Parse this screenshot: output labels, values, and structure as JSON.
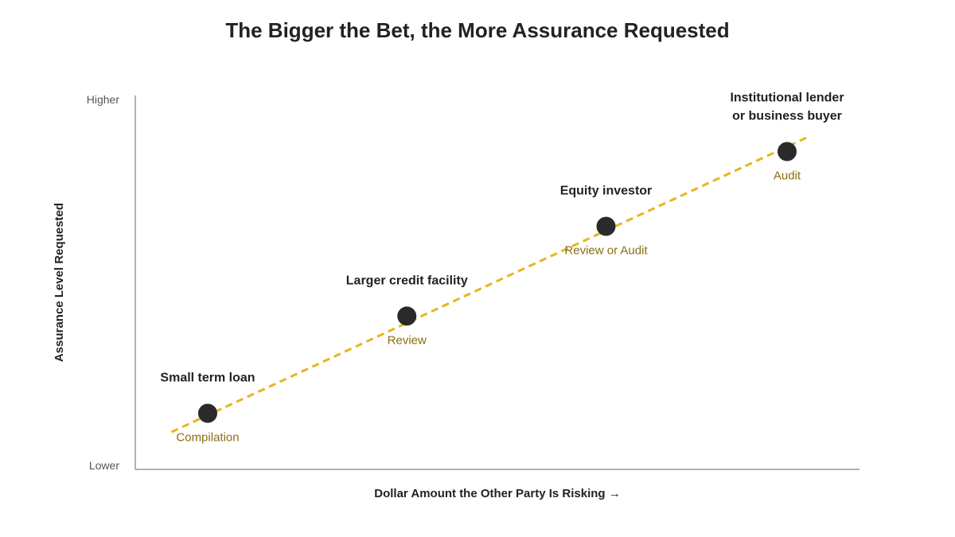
{
  "colors": {
    "trend_line": "#E8B51C",
    "point_fill": "#2A2A2A",
    "sublabel": "#8A6D10",
    "axis": "#999999"
  },
  "chart_data": {
    "type": "scatter",
    "title": "The Bigger the Bet, the More Assurance Requested",
    "xlabel": "Dollar Amount the Other Party Is Risking →",
    "ylabel": "Assurance Level Requested",
    "y_ticks": [
      "Lower",
      "Higher"
    ],
    "xlim": [
      0,
      1
    ],
    "ylim": [
      0,
      1
    ],
    "grid": false,
    "trend_line": {
      "style": "dashed",
      "x": [
        0.05,
        0.93
      ],
      "y": [
        0.1,
        0.89
      ]
    },
    "points": [
      {
        "label": [
          "Small term loan"
        ],
        "sublabel": "Compilation",
        "x": 0.1,
        "y": 0.15
      },
      {
        "label": [
          "Larger credit facility"
        ],
        "sublabel": "Review",
        "x": 0.375,
        "y": 0.41
      },
      {
        "label": [
          "Equity investor"
        ],
        "sublabel": "Review or Audit",
        "x": 0.65,
        "y": 0.65
      },
      {
        "label": [
          "Institutional lender",
          "or business buyer"
        ],
        "sublabel": "Audit",
        "x": 0.9,
        "y": 0.85
      }
    ]
  }
}
